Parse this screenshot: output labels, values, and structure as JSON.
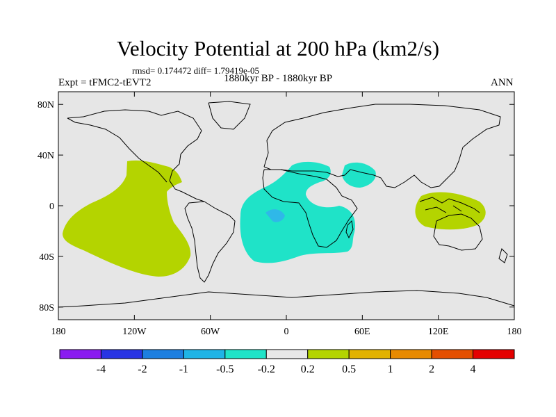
{
  "title": "Velocity Potential at 200 hPa (km2/s)",
  "stats": "rmsd= 0.174472 diff= 1.79419e-05",
  "experiment": "Expt = tFMC2-tEVT2",
  "period": "1880kyr BP - 1880kyr BP",
  "season": "ANN",
  "map": {
    "background_color": "#e6e6e6",
    "lat_labels": [
      "80N",
      "40N",
      "0",
      "40S",
      "80S"
    ],
    "lat_values": [
      80,
      40,
      0,
      -40,
      -80
    ],
    "lon_labels": [
      "180",
      "120W",
      "60W",
      "0",
      "60E",
      "120E",
      "180"
    ],
    "lon_values": [
      -180,
      -120,
      -60,
      0,
      60,
      120,
      180
    ],
    "anomaly_regions": [
      {
        "name": "east-pacific-positive",
        "category": "0.2 to 0.5",
        "color": "#b4d400"
      },
      {
        "name": "atlantic-africa-negative",
        "category": "-0.5 to -0.2",
        "color": "#1fe3c8"
      },
      {
        "name": "arabia-negative",
        "category": "-0.5 to -0.2",
        "color": "#1fe3c8"
      },
      {
        "name": "maritime-continent-positive",
        "category": "0.2 to 0.5",
        "color": "#b4d400"
      },
      {
        "name": "south-atlantic-core",
        "category": "-1 to -0.5",
        "color": "#2fb8e8"
      }
    ]
  },
  "colorbar": {
    "colors": [
      "#8a1bf0",
      "#2834e3",
      "#1d7fe0",
      "#1fb4e6",
      "#1fe3c8",
      "#e8e8e8",
      "#b4d400",
      "#e2b200",
      "#e88a00",
      "#e44f00",
      "#e40000"
    ],
    "labels": [
      "-4",
      "-2",
      "-1",
      "-0.5",
      "-0.2",
      "0.2",
      "0.5",
      "1",
      "2",
      "4"
    ]
  }
}
